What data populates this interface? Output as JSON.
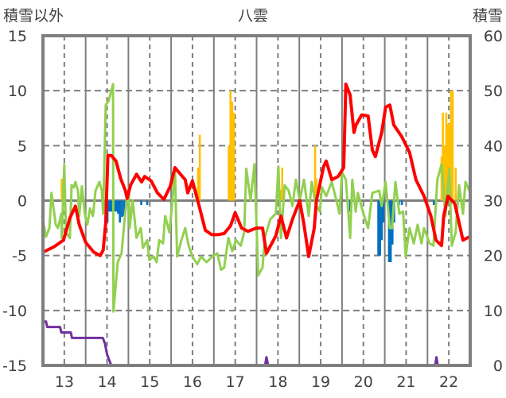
{
  "chart_data": {
    "type": "line",
    "title": "八雲",
    "ylabel_left": "積雪以外",
    "ylabel_right": "積雪",
    "xlim": [
      12.5,
      22.5
    ],
    "ylim_left": [
      -15,
      15
    ],
    "ylim_right": [
      0,
      60
    ],
    "x_ticks": [
      "13",
      "14",
      "15",
      "16",
      "17",
      "18",
      "19",
      "20",
      "21",
      "22"
    ],
    "y_ticks_left": [
      "15",
      "10",
      "5",
      "0",
      "-5",
      "-10",
      "-15"
    ],
    "y_ticks_right": [
      "60",
      "50",
      "40",
      "30",
      "20",
      "10",
      "0"
    ],
    "grid": true,
    "colors": {
      "red": "#ff0000",
      "green": "#92d050",
      "purple": "#7030a0",
      "orange": "#ffc000",
      "blue": "#0070c0",
      "axis": "#7f7f7f"
    },
    "series": [
      {
        "key": "red",
        "axis": "left",
        "kind": "line",
        "points": [
          [
            12.5,
            -4.7
          ],
          [
            12.76,
            -4.2
          ],
          [
            12.98,
            -3.6
          ],
          [
            13.13,
            -1.6
          ],
          [
            13.26,
            -0.5
          ],
          [
            13.35,
            -2.2
          ],
          [
            13.5,
            -3.8
          ],
          [
            13.69,
            -4.7
          ],
          [
            13.84,
            -5.0
          ],
          [
            13.91,
            -4.5
          ],
          [
            13.97,
            -2.0
          ],
          [
            14.02,
            4.1
          ],
          [
            14.1,
            4.1
          ],
          [
            14.21,
            3.6
          ],
          [
            14.32,
            2.0
          ],
          [
            14.43,
            0.9
          ],
          [
            14.47,
            0.2
          ],
          [
            14.55,
            1.4
          ],
          [
            14.69,
            2.4
          ],
          [
            14.81,
            1.7
          ],
          [
            14.88,
            2.2
          ],
          [
            15.03,
            1.8
          ],
          [
            15.18,
            0.7
          ],
          [
            15.33,
            0.1
          ],
          [
            15.48,
            1.3
          ],
          [
            15.59,
            3.0
          ],
          [
            15.74,
            2.3
          ],
          [
            15.83,
            1.9
          ],
          [
            15.89,
            0.7
          ],
          [
            16.0,
            1.8
          ],
          [
            16.15,
            -0.4
          ],
          [
            16.3,
            -2.7
          ],
          [
            16.45,
            -3.1
          ],
          [
            16.59,
            -3.1
          ],
          [
            16.74,
            -3.0
          ],
          [
            16.89,
            -2.3
          ],
          [
            17.0,
            -1.1
          ],
          [
            17.15,
            -2.5
          ],
          [
            17.3,
            -2.8
          ],
          [
            17.49,
            -2.5
          ],
          [
            17.64,
            -2.5
          ],
          [
            17.73,
            -4.8
          ],
          [
            17.95,
            -3.2
          ],
          [
            18.07,
            -1.4
          ],
          [
            18.2,
            -3.4
          ],
          [
            18.34,
            -1.7
          ],
          [
            18.51,
            0.0
          ],
          [
            18.61,
            -2.2
          ],
          [
            18.72,
            -5.1
          ],
          [
            18.85,
            -2.5
          ],
          [
            18.9,
            0.0
          ],
          [
            19.07,
            3.1
          ],
          [
            19.13,
            3.6
          ],
          [
            19.26,
            1.9
          ],
          [
            19.41,
            2.2
          ],
          [
            19.54,
            3.0
          ],
          [
            19.59,
            10.6
          ],
          [
            19.69,
            9.6
          ],
          [
            19.78,
            6.2
          ],
          [
            19.83,
            6.9
          ],
          [
            19.96,
            7.8
          ],
          [
            20.11,
            7.7
          ],
          [
            20.21,
            4.6
          ],
          [
            20.28,
            4.0
          ],
          [
            20.43,
            6.2
          ],
          [
            20.52,
            8.5
          ],
          [
            20.62,
            8.7
          ],
          [
            20.71,
            6.9
          ],
          [
            20.9,
            5.8
          ],
          [
            21.08,
            4.4
          ],
          [
            21.23,
            1.9
          ],
          [
            21.42,
            0.4
          ],
          [
            21.58,
            -1.4
          ],
          [
            21.7,
            -3.6
          ],
          [
            21.83,
            -4.1
          ],
          [
            21.88,
            -1.4
          ],
          [
            21.98,
            0.4
          ],
          [
            22.14,
            -0.3
          ],
          [
            22.33,
            -3.6
          ],
          [
            22.48,
            -3.3
          ]
        ]
      },
      {
        "key": "green",
        "axis": "left",
        "kind": "line",
        "points": [
          [
            12.48,
            -1.4
          ],
          [
            12.57,
            -3.3
          ],
          [
            12.65,
            -2.5
          ],
          [
            12.7,
            0.7
          ],
          [
            12.8,
            -2.2
          ],
          [
            12.85,
            -2.5
          ],
          [
            12.93,
            -1.2
          ],
          [
            12.94,
            -3.4
          ],
          [
            13.0,
            3.3
          ],
          [
            13.04,
            -2.9
          ],
          [
            13.13,
            -3.4
          ],
          [
            13.17,
            1.4
          ],
          [
            13.22,
            1.2
          ],
          [
            13.26,
            1.7
          ],
          [
            13.32,
            0.9
          ],
          [
            13.35,
            -1.4
          ],
          [
            13.41,
            1.3
          ],
          [
            13.48,
            -1.2
          ],
          [
            13.54,
            -2.2
          ],
          [
            13.6,
            -0.7
          ],
          [
            13.67,
            -1.4
          ],
          [
            13.73,
            0.9
          ],
          [
            13.82,
            1.7
          ],
          [
            13.88,
            0.9
          ],
          [
            13.91,
            -1.2
          ],
          [
            13.97,
            8.7
          ],
          [
            14.04,
            9.1
          ],
          [
            14.14,
            10.6
          ],
          [
            14.15,
            -10.1
          ],
          [
            14.25,
            -5.6
          ],
          [
            14.34,
            -4.8
          ],
          [
            14.43,
            -1.0
          ],
          [
            14.51,
            1.2
          ],
          [
            14.53,
            -2.5
          ],
          [
            14.6,
            0.0
          ],
          [
            14.69,
            -3.4
          ],
          [
            14.79,
            -2.5
          ],
          [
            14.84,
            -4.3
          ],
          [
            14.94,
            -3.6
          ],
          [
            14.99,
            -5.4
          ],
          [
            15.09,
            -5.1
          ],
          [
            15.16,
            -5.6
          ],
          [
            15.22,
            -3.6
          ],
          [
            15.31,
            -3.9
          ],
          [
            15.36,
            -1.4
          ],
          [
            15.46,
            -2.9
          ],
          [
            15.53,
            0.0
          ],
          [
            15.59,
            2.9
          ],
          [
            15.64,
            -5.1
          ],
          [
            15.74,
            -3.6
          ],
          [
            15.83,
            -2.5
          ],
          [
            15.91,
            -4.1
          ],
          [
            16.0,
            -5.1
          ],
          [
            16.11,
            -5.8
          ],
          [
            16.2,
            -5.1
          ],
          [
            16.33,
            -5.6
          ],
          [
            16.46,
            -5.1
          ],
          [
            16.58,
            -4.8
          ],
          [
            16.67,
            -6.3
          ],
          [
            16.74,
            -6.1
          ],
          [
            16.84,
            -3.4
          ],
          [
            16.93,
            -4.6
          ],
          [
            17.02,
            -3.6
          ],
          [
            17.13,
            -4.1
          ],
          [
            17.21,
            -2.9
          ],
          [
            17.26,
            2.9
          ],
          [
            17.36,
            0.0
          ],
          [
            17.45,
            3.3
          ],
          [
            17.54,
            -6.8
          ],
          [
            17.64,
            -6.1
          ],
          [
            17.69,
            -3.4
          ],
          [
            17.82,
            -1.7
          ],
          [
            17.95,
            -1.2
          ],
          [
            18.01,
            3.1
          ],
          [
            18.07,
            -3.4
          ],
          [
            18.16,
            1.4
          ],
          [
            18.25,
            0.9
          ],
          [
            18.34,
            -0.5
          ],
          [
            18.42,
            1.9
          ],
          [
            18.51,
            0.0
          ],
          [
            18.61,
            1.9
          ],
          [
            18.72,
            -1.4
          ],
          [
            18.79,
            1.7
          ],
          [
            18.88,
            -0.3
          ],
          [
            18.98,
            -1.0
          ],
          [
            19.03,
            1.2
          ],
          [
            19.13,
            0.4
          ],
          [
            19.26,
            1.7
          ],
          [
            19.37,
            0.0
          ],
          [
            19.44,
            -1.2
          ],
          [
            19.5,
            2.6
          ],
          [
            19.59,
            1.9
          ],
          [
            19.69,
            -3.4
          ],
          [
            19.74,
            1.9
          ],
          [
            19.82,
            -1.0
          ],
          [
            19.87,
            0.7
          ],
          [
            20.0,
            -1.2
          ],
          [
            20.11,
            -2.5
          ],
          [
            20.21,
            0.7
          ],
          [
            20.37,
            0.9
          ],
          [
            20.43,
            -0.5
          ],
          [
            20.52,
            1.7
          ],
          [
            20.62,
            -2.5
          ],
          [
            20.67,
            -2.5
          ],
          [
            20.75,
            1.7
          ],
          [
            20.84,
            -1.2
          ],
          [
            20.93,
            -1.0
          ],
          [
            20.99,
            -5.1
          ],
          [
            21.08,
            -2.5
          ],
          [
            21.18,
            -3.9
          ],
          [
            21.27,
            -2.2
          ],
          [
            21.36,
            -3.9
          ],
          [
            21.42,
            -2.5
          ],
          [
            21.55,
            -3.9
          ],
          [
            21.64,
            -4.1
          ],
          [
            21.73,
            1.9
          ],
          [
            21.83,
            3.3
          ],
          [
            21.92,
            -1.4
          ],
          [
            22.01,
            2.9
          ],
          [
            22.07,
            -4.1
          ],
          [
            22.16,
            -2.9
          ],
          [
            22.24,
            1.4
          ],
          [
            22.33,
            -1.2
          ],
          [
            22.39,
            1.7
          ],
          [
            22.48,
            0.9
          ]
        ]
      },
      {
        "key": "purple",
        "axis": "right",
        "kind": "line",
        "points": [
          [
            12.48,
            8
          ],
          [
            12.57,
            8
          ],
          [
            12.6,
            7
          ],
          [
            12.9,
            7
          ],
          [
            12.93,
            6
          ],
          [
            13.15,
            6
          ],
          [
            13.18,
            5
          ],
          [
            13.9,
            5
          ],
          [
            13.95,
            4
          ],
          [
            14.0,
            2
          ],
          [
            14.05,
            1
          ],
          [
            14.1,
            0
          ],
          [
            17.7,
            0
          ],
          [
            17.73,
            1.5
          ],
          [
            17.77,
            0
          ],
          [
            21.68,
            0
          ],
          [
            21.71,
            1.5
          ],
          [
            21.74,
            0
          ],
          [
            22.5,
            0
          ]
        ]
      },
      {
        "key": "orange",
        "axis": "left",
        "kind": "bar",
        "points": [
          [
            12.94,
            2
          ],
          [
            16.09,
            1
          ],
          [
            16.13,
            3
          ],
          [
            16.17,
            6
          ],
          [
            16.85,
            5
          ],
          [
            16.89,
            10
          ],
          [
            16.93,
            9
          ],
          [
            16.97,
            8
          ],
          [
            18.07,
            1
          ],
          [
            18.1,
            3
          ],
          [
            18.87,
            5
          ],
          [
            18.9,
            2
          ],
          [
            21.83,
            4
          ],
          [
            21.86,
            8
          ],
          [
            21.9,
            5
          ],
          [
            21.94,
            8
          ],
          [
            21.98,
            7
          ],
          [
            22.01,
            7
          ],
          [
            22.05,
            10
          ],
          [
            22.09,
            10
          ],
          [
            22.16,
            3
          ]
        ]
      },
      {
        "key": "blue",
        "axis": "left",
        "kind": "bar",
        "points": [
          [
            13.97,
            -2
          ],
          [
            14.01,
            -2
          ],
          [
            14.05,
            -1
          ],
          [
            14.09,
            -1
          ],
          [
            14.13,
            -1
          ],
          [
            14.18,
            -1
          ],
          [
            14.22,
            -1
          ],
          [
            14.26,
            -1.2
          ],
          [
            14.3,
            -2
          ],
          [
            14.35,
            -1.5
          ],
          [
            14.4,
            -1.4
          ],
          [
            14.8,
            -0.4
          ],
          [
            14.94,
            -0.4
          ],
          [
            19.69,
            -1
          ],
          [
            20.35,
            -5
          ],
          [
            20.39,
            -5
          ],
          [
            20.43,
            -3.6
          ],
          [
            20.47,
            -2
          ],
          [
            20.6,
            -5.6
          ],
          [
            20.64,
            -5.6
          ],
          [
            20.68,
            -4
          ],
          [
            20.72,
            -2
          ],
          [
            20.83,
            -0.4
          ],
          [
            20.9,
            -0.4
          ],
          [
            21.65,
            -0.4
          ]
        ]
      }
    ]
  }
}
